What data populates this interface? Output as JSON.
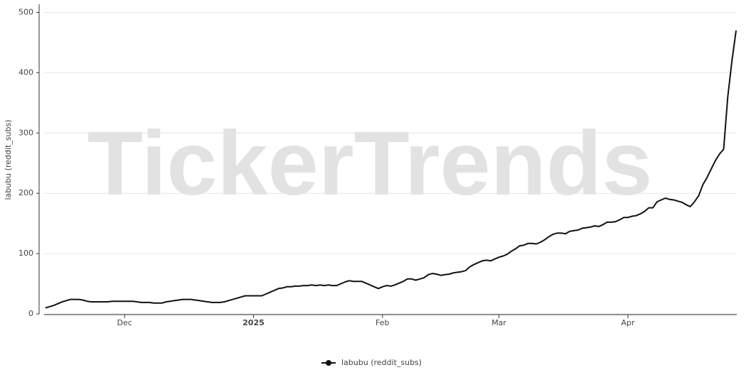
{
  "chart_data": {
    "type": "line",
    "watermark": "TickerTrends",
    "y_label": "labubu  (reddit_subs)",
    "categories": [
      null,
      null,
      null,
      null,
      null,
      null,
      null,
      null,
      null,
      null,
      null,
      null,
      null,
      null,
      null,
      null,
      null,
      null,
      null,
      "Dec",
      null,
      null,
      null,
      null,
      null,
      null,
      null,
      null,
      null,
      null,
      null,
      null,
      null,
      null,
      null,
      null,
      null,
      null,
      null,
      null,
      null,
      null,
      null,
      null,
      null,
      null,
      null,
      null,
      null,
      null,
      "2025",
      null,
      null,
      null,
      null,
      null,
      null,
      null,
      null,
      null,
      null,
      null,
      null,
      null,
      null,
      null,
      null,
      null,
      null,
      null,
      null,
      null,
      null,
      null,
      null,
      null,
      null,
      null,
      null,
      null,
      null,
      "Feb",
      null,
      null,
      null,
      null,
      null,
      null,
      null,
      null,
      null,
      null,
      null,
      null,
      null,
      null,
      null,
      null,
      null,
      null,
      null,
      null,
      null,
      null,
      null,
      null,
      null,
      null,
      null,
      "Mar",
      null,
      null,
      null,
      null,
      null,
      null,
      null,
      null,
      null,
      null,
      null,
      null,
      null,
      null,
      null,
      null,
      null,
      null,
      null,
      null,
      null,
      null,
      null,
      null,
      null,
      null,
      null,
      null,
      null,
      null,
      "Apr",
      null,
      null,
      null,
      null,
      null,
      null,
      null,
      null,
      null,
      null,
      null,
      null,
      null,
      null,
      null,
      null,
      null,
      null,
      null,
      null,
      null,
      null,
      null,
      null,
      null,
      null
    ],
    "series": [
      {
        "name": "labubu  (reddit_subs)",
        "color": "#111111",
        "values": [
          10,
          12,
          14,
          17,
          20,
          22,
          24,
          24,
          24,
          23,
          21,
          20,
          20,
          20,
          20,
          20,
          21,
          21,
          21,
          21,
          21,
          21,
          20,
          19,
          19,
          19,
          18,
          18,
          18,
          20,
          21,
          22,
          23,
          24,
          24,
          24,
          23,
          22,
          21,
          20,
          19,
          19,
          19,
          20,
          22,
          24,
          26,
          28,
          30,
          30,
          30,
          30,
          30,
          33,
          36,
          39,
          42,
          43,
          45,
          45,
          46,
          46,
          47,
          47,
          48,
          47,
          48,
          47,
          48,
          47,
          47,
          50,
          53,
          55,
          54,
          54,
          54,
          51,
          48,
          45,
          42,
          45,
          47,
          46,
          48,
          51,
          54,
          58,
          58,
          56,
          58,
          60,
          65,
          67,
          66,
          64,
          65,
          66,
          68,
          69,
          70,
          72,
          78,
          82,
          85,
          88,
          89,
          88,
          91,
          94,
          96,
          99,
          104,
          108,
          113,
          114,
          117,
          117,
          116,
          119,
          123,
          128,
          132,
          134,
          134,
          133,
          137,
          138,
          139,
          142,
          143,
          144,
          146,
          145,
          148,
          152,
          152,
          153,
          156,
          160,
          160,
          162,
          163,
          166,
          170,
          176,
          176,
          186,
          189,
          192,
          190,
          189,
          187,
          185,
          181,
          178,
          186,
          196,
          214,
          226,
          240,
          254,
          265,
          273,
          360,
          420,
          470
        ]
      }
    ],
    "ylim": [
      0,
      510
    ],
    "yticks": [
      0,
      100,
      200,
      300,
      400,
      500
    ],
    "grid": true
  }
}
